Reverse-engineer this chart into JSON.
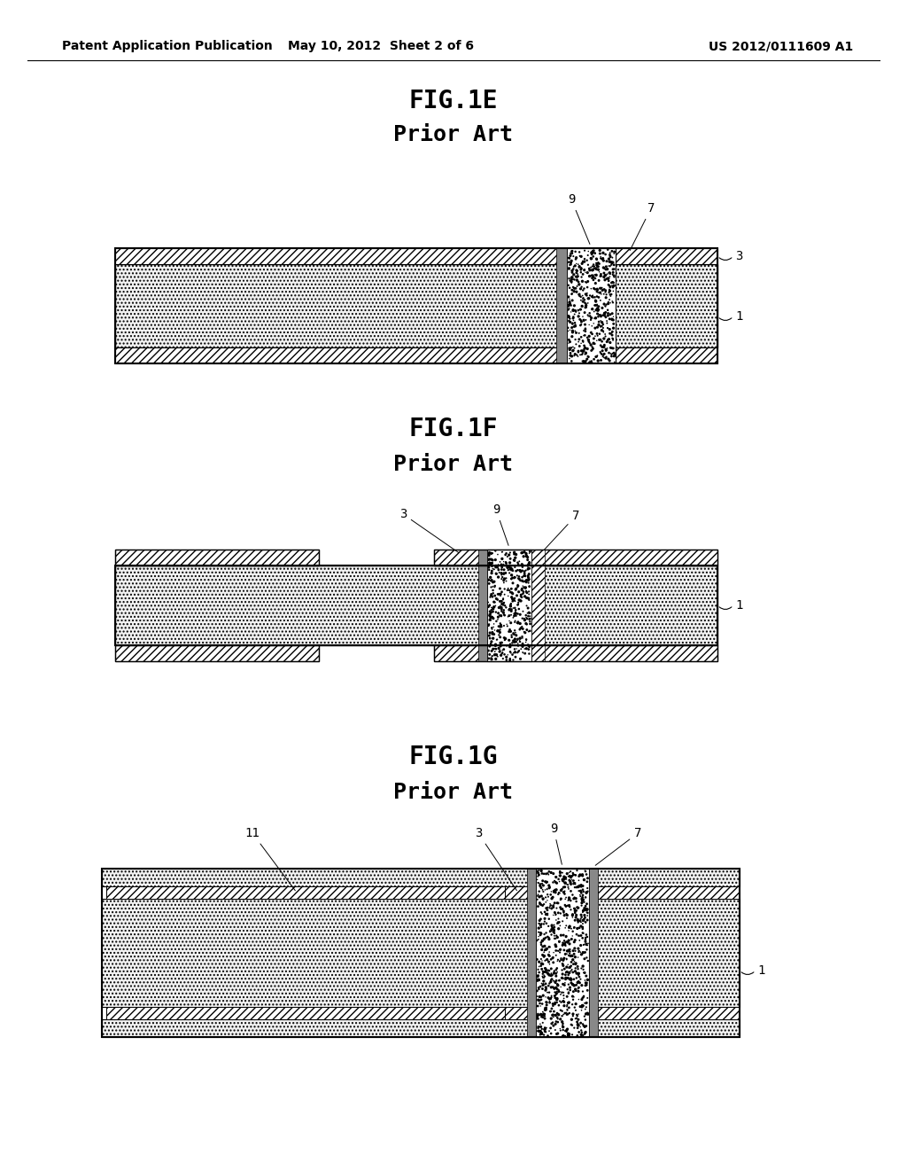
{
  "background_color": "#ffffff",
  "header_left": "Patent Application Publication",
  "header_center": "May 10, 2012  Sheet 2 of 6",
  "header_right": "US 2012/0111609 A1"
}
